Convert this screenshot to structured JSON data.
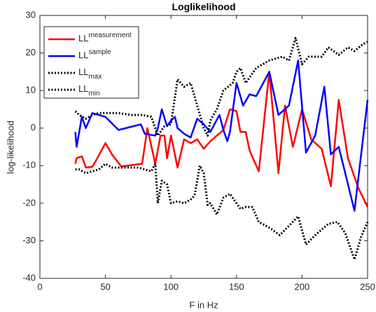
{
  "chart_data": {
    "type": "line",
    "title": "Loglikelihood",
    "xlabel": "F in Hz",
    "ylabel": "log-likelihood",
    "xlim": [
      0,
      250
    ],
    "ylim": [
      -40,
      30
    ],
    "xticks": [
      0,
      50,
      100,
      150,
      200,
      250
    ],
    "yticks": [
      -40,
      -30,
      -20,
      -10,
      0,
      10,
      20,
      30
    ],
    "series": [
      {
        "name": "LL",
        "name_sup": "measurement",
        "color": "#ff0000",
        "style": "solid",
        "x": [
          27,
          28,
          32,
          35,
          40,
          43,
          50,
          55,
          62,
          78,
          82,
          88,
          92,
          95,
          97,
          100,
          105,
          110,
          115,
          120,
          125,
          130,
          140,
          145,
          150,
          153,
          157,
          160,
          167,
          175,
          182,
          187,
          193,
          200,
          207,
          215,
          222,
          228,
          235,
          243,
          250
        ],
        "values": [
          -9.5,
          -8,
          -7.5,
          -10.5,
          -10.3,
          -8.5,
          -4,
          -7,
          -10.2,
          -9.5,
          0,
          -9.5,
          -2,
          -2,
          -8,
          -2,
          -10.5,
          -3,
          -4,
          -3,
          -5.5,
          -3.5,
          -0.5,
          5,
          4.5,
          -1,
          -1,
          -6,
          -11.5,
          15,
          -12,
          6,
          -5,
          5,
          -3,
          -5.5,
          -15.5,
          7.5,
          -8,
          -16,
          -21
        ]
      },
      {
        "name": "LL",
        "name_sup": "sample",
        "color": "#0000ff",
        "style": "solid",
        "x": [
          27,
          28,
          32,
          35,
          40,
          50,
          60,
          77,
          80,
          88,
          90,
          93,
          97,
          100,
          103,
          105,
          110,
          115,
          120,
          125,
          130,
          137,
          140,
          143,
          145,
          150,
          155,
          160,
          165,
          175,
          182,
          190,
          197,
          203,
          210,
          217,
          222,
          228,
          240,
          250
        ],
        "values": [
          -1,
          -5,
          3,
          0,
          4,
          3,
          -0.5,
          1,
          -1.5,
          -2,
          0,
          5,
          0.5,
          2,
          3,
          0,
          -1.5,
          -2.5,
          2.5,
          1,
          -1,
          3.5,
          -0.5,
          -3.5,
          -1,
          12,
          6,
          9,
          8.5,
          15,
          3.5,
          6,
          18,
          -6.5,
          -2,
          11,
          -7,
          -5,
          -22,
          7.5
        ]
      },
      {
        "name": "LL",
        "name_sub": "max",
        "color": "#000000",
        "style": "dotted",
        "x": [
          27,
          30,
          35,
          40,
          45,
          60,
          70,
          78,
          85,
          90,
          95,
          100,
          105,
          110,
          115,
          120,
          125,
          128,
          130,
          135,
          140,
          147,
          150,
          153,
          157,
          165,
          175,
          185,
          190,
          195,
          200,
          205,
          215,
          220,
          228,
          235,
          240,
          245,
          250
        ],
        "values": [
          4.5,
          3.5,
          2.5,
          3.5,
          4,
          4,
          3.5,
          3.5,
          3,
          -2,
          0.5,
          1,
          13,
          11,
          12,
          6,
          0,
          -2,
          2,
          5,
          10,
          12,
          15,
          16,
          12,
          16,
          18,
          19,
          18,
          24,
          17,
          19,
          19,
          21.5,
          19.5,
          21.5,
          20.5,
          22,
          23
        ]
      },
      {
        "name": "LL",
        "name_sub": "min",
        "color": "#000000",
        "style": "dotted",
        "x": [
          27,
          30,
          35,
          40,
          45,
          50,
          55,
          60,
          75,
          80,
          85,
          88,
          90,
          93,
          97,
          100,
          105,
          110,
          115,
          118,
          122,
          125,
          128,
          130,
          135,
          140,
          145,
          150,
          153,
          157,
          162,
          167,
          175,
          183,
          190,
          197,
          203,
          210,
          220,
          227,
          233,
          240,
          245,
          250
        ],
        "values": [
          -11,
          -11,
          -12,
          -11.5,
          -11,
          -9.5,
          -10.5,
          -10.5,
          -10.5,
          -11,
          -11.5,
          -9.5,
          -20,
          -14,
          -15,
          -20,
          -19.5,
          -20,
          -19,
          -18,
          -10,
          -12,
          -20.5,
          -20,
          -23,
          -18.5,
          -17.5,
          -20,
          -21.5,
          -21,
          -21,
          -25,
          -26.5,
          -28.5,
          -26,
          -23.5,
          -31,
          -28.5,
          -25.5,
          -25,
          -28,
          -35,
          -29,
          -25
        ]
      }
    ]
  }
}
